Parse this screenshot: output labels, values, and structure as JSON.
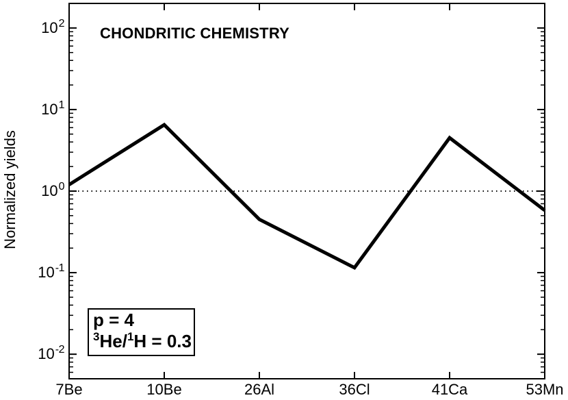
{
  "figure": {
    "background": "#ffffff",
    "foreground": "#000000"
  },
  "chart_data": {
    "type": "line",
    "title": "CHONDRITIC CHEMISTRY",
    "xlabel": "",
    "ylabel": "Normalized yields",
    "categories": [
      "7Be",
      "10Be",
      "26Al",
      "36Cl",
      "41Ca",
      "53Mn"
    ],
    "values": [
      1.2,
      6.5,
      0.45,
      0.115,
      4.5,
      0.58
    ],
    "yscale": "log",
    "ylim": [
      0.005,
      200
    ],
    "grid": false,
    "legend": "none",
    "line": {
      "color": "#000000",
      "width": 5
    },
    "reference_line": {
      "y": 1,
      "style": "dotted",
      "color": "#000000",
      "width": 2
    },
    "y_ticks": [
      {
        "base": "10",
        "exp": "2",
        "value": 100
      },
      {
        "base": "10",
        "exp": "1",
        "value": 10
      },
      {
        "base": "10",
        "exp": "0",
        "value": 1
      },
      {
        "base": "10",
        "exp": "-1",
        "value": 0.1
      },
      {
        "base": "10",
        "exp": "-2",
        "value": 0.01
      }
    ],
    "annotation": {
      "line1": "p = 4",
      "line2_sup1": "3",
      "line2_text1": "He/",
      "line2_sup2": "1",
      "line2_text2": "H = 0.3"
    }
  }
}
